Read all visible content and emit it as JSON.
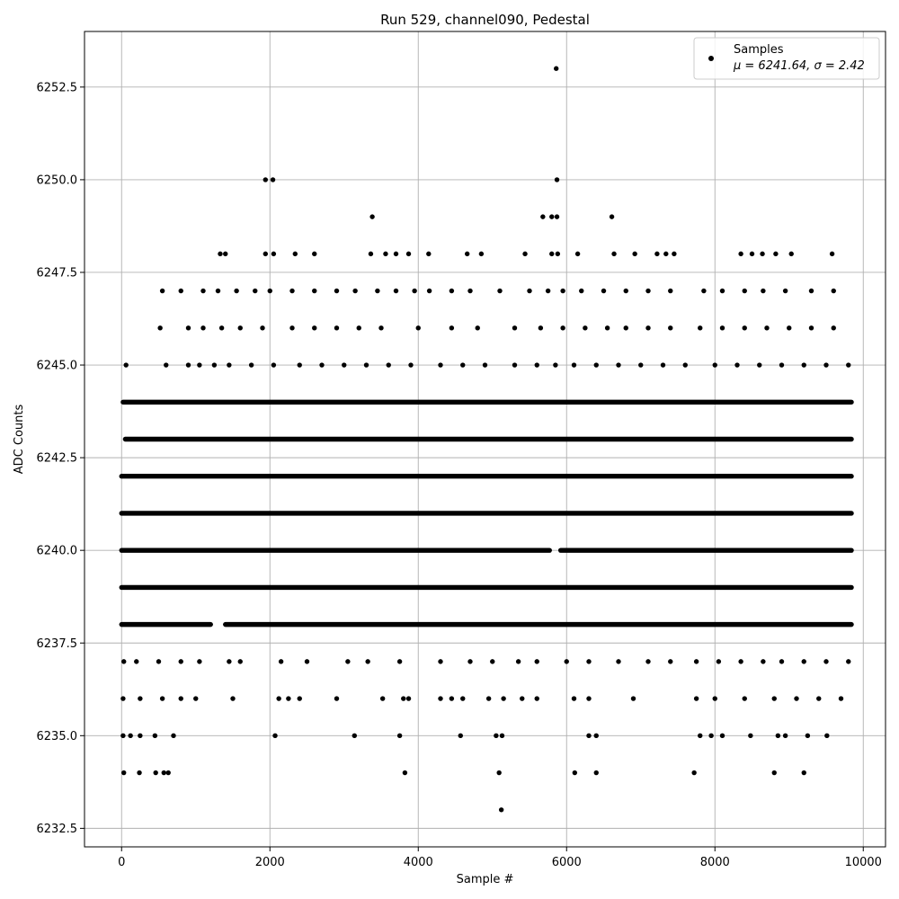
{
  "chart_data": {
    "type": "scatter",
    "title": "Run 529, channel090, Pedestal",
    "xlabel": "Sample #",
    "ylabel": "ADC Counts",
    "xlim": [
      -500,
      10300
    ],
    "ylim": [
      6232.0,
      6254.0
    ],
    "x_ticks": [
      0,
      2000,
      4000,
      6000,
      8000,
      10000
    ],
    "x_tick_labels": [
      "0",
      "2000",
      "4000",
      "6000",
      "8000",
      "10000"
    ],
    "y_ticks": [
      6232.5,
      6235.0,
      6237.5,
      6240.0,
      6242.5,
      6245.0,
      6247.5,
      6250.0,
      6252.5
    ],
    "y_tick_labels": [
      "6232.5",
      "6235.0",
      "6237.5",
      "6240.0",
      "6242.5",
      "6245.0",
      "6247.5",
      "6250.0",
      "6252.5"
    ],
    "grid": true,
    "marker_color": "#000000",
    "legend": {
      "position": "top-right",
      "entry_name": "Samples",
      "entry_stats": "μ = 6241.64, σ = 2.42"
    },
    "levels": [
      {
        "y": 6244,
        "segments": [
          [
            20,
            9840
          ]
        ]
      },
      {
        "y": 6243,
        "segments": [
          [
            50,
            9840
          ]
        ]
      },
      {
        "y": 6242,
        "segments": [
          [
            0,
            9840
          ]
        ]
      },
      {
        "y": 6241,
        "segments": [
          [
            0,
            9840
          ]
        ]
      },
      {
        "y": 6240,
        "segments": [
          [
            0,
            5770
          ],
          [
            5920,
            9840
          ]
        ]
      },
      {
        "y": 6239,
        "segments": [
          [
            0,
            9840
          ]
        ]
      },
      {
        "y": 6238,
        "segments": [
          [
            0,
            1200
          ],
          [
            1400,
            9840
          ]
        ]
      }
    ],
    "points": [
      [
        60,
        6245
      ],
      [
        600,
        6245
      ],
      [
        900,
        6245
      ],
      [
        1050,
        6245
      ],
      [
        1250,
        6245
      ],
      [
        1450,
        6245
      ],
      [
        1750,
        6245
      ],
      [
        2050,
        6245
      ],
      [
        2400,
        6245
      ],
      [
        2700,
        6245
      ],
      [
        3000,
        6245
      ],
      [
        3300,
        6245
      ],
      [
        3600,
        6245
      ],
      [
        3900,
        6245
      ],
      [
        4300,
        6245
      ],
      [
        4600,
        6245
      ],
      [
        4900,
        6245
      ],
      [
        5300,
        6245
      ],
      [
        5600,
        6245
      ],
      [
        5850,
        6245
      ],
      [
        6100,
        6245
      ],
      [
        6400,
        6245
      ],
      [
        6700,
        6245
      ],
      [
        7000,
        6245
      ],
      [
        7300,
        6245
      ],
      [
        7600,
        6245
      ],
      [
        8000,
        6245
      ],
      [
        8300,
        6245
      ],
      [
        8600,
        6245
      ],
      [
        8900,
        6245
      ],
      [
        9200,
        6245
      ],
      [
        9500,
        6245
      ],
      [
        9800,
        6245
      ],
      [
        520,
        6246
      ],
      [
        900,
        6246
      ],
      [
        1100,
        6246
      ],
      [
        1350,
        6246
      ],
      [
        1600,
        6246
      ],
      [
        1900,
        6246
      ],
      [
        2300,
        6246
      ],
      [
        2600,
        6246
      ],
      [
        2900,
        6246
      ],
      [
        3200,
        6246
      ],
      [
        3500,
        6246
      ],
      [
        4000,
        6246
      ],
      [
        4450,
        6246
      ],
      [
        4800,
        6246
      ],
      [
        5300,
        6246
      ],
      [
        5650,
        6246
      ],
      [
        5950,
        6246
      ],
      [
        6250,
        6246
      ],
      [
        6550,
        6246
      ],
      [
        6800,
        6246
      ],
      [
        7100,
        6246
      ],
      [
        7400,
        6246
      ],
      [
        7800,
        6246
      ],
      [
        8100,
        6246
      ],
      [
        8400,
        6246
      ],
      [
        8700,
        6246
      ],
      [
        9000,
        6246
      ],
      [
        9300,
        6246
      ],
      [
        9600,
        6246
      ],
      [
        550,
        6247
      ],
      [
        800,
        6247
      ],
      [
        1100,
        6247
      ],
      [
        1300,
        6247
      ],
      [
        1550,
        6247
      ],
      [
        1800,
        6247
      ],
      [
        2000,
        6247
      ],
      [
        2300,
        6247
      ],
      [
        2600,
        6247
      ],
      [
        2900,
        6247
      ],
      [
        3150,
        6247
      ],
      [
        3450,
        6247
      ],
      [
        3700,
        6247
      ],
      [
        3950,
        6247
      ],
      [
        4150,
        6247
      ],
      [
        4450,
        6247
      ],
      [
        4700,
        6247
      ],
      [
        5100,
        6247
      ],
      [
        5500,
        6247
      ],
      [
        5750,
        6247
      ],
      [
        5950,
        6247
      ],
      [
        6200,
        6247
      ],
      [
        6500,
        6247
      ],
      [
        6800,
        6247
      ],
      [
        7100,
        6247
      ],
      [
        7400,
        6247
      ],
      [
        7850,
        6247
      ],
      [
        8100,
        6247
      ],
      [
        8400,
        6247
      ],
      [
        8650,
        6247
      ],
      [
        8950,
        6247
      ],
      [
        9300,
        6247
      ],
      [
        9600,
        6247
      ],
      [
        1330,
        6248
      ],
      [
        1400,
        6248
      ],
      [
        1940,
        6248
      ],
      [
        2050,
        6248
      ],
      [
        2340,
        6248
      ],
      [
        2600,
        6248
      ],
      [
        3360,
        6248
      ],
      [
        3560,
        6248
      ],
      [
        3700,
        6248
      ],
      [
        3870,
        6248
      ],
      [
        4140,
        6248
      ],
      [
        4660,
        6248
      ],
      [
        4850,
        6248
      ],
      [
        5440,
        6248
      ],
      [
        5800,
        6248
      ],
      [
        5880,
        6248
      ],
      [
        6150,
        6248
      ],
      [
        6640,
        6248
      ],
      [
        6920,
        6248
      ],
      [
        7220,
        6248
      ],
      [
        7340,
        6248
      ],
      [
        7450,
        6248
      ],
      [
        8350,
        6248
      ],
      [
        8500,
        6248
      ],
      [
        8640,
        6248
      ],
      [
        8820,
        6248
      ],
      [
        9030,
        6248
      ],
      [
        9580,
        6248
      ],
      [
        3380,
        6249
      ],
      [
        5680,
        6249
      ],
      [
        5800,
        6249
      ],
      [
        5870,
        6249
      ],
      [
        6610,
        6249
      ],
      [
        1940,
        6250
      ],
      [
        2040,
        6250
      ],
      [
        5870,
        6250
      ],
      [
        5860,
        6253
      ],
      [
        30,
        6237
      ],
      [
        200,
        6237
      ],
      [
        500,
        6237
      ],
      [
        800,
        6237
      ],
      [
        1050,
        6237
      ],
      [
        1450,
        6237
      ],
      [
        1600,
        6237
      ],
      [
        2150,
        6237
      ],
      [
        2500,
        6237
      ],
      [
        3050,
        6237
      ],
      [
        3320,
        6237
      ],
      [
        3750,
        6237
      ],
      [
        4300,
        6237
      ],
      [
        4700,
        6237
      ],
      [
        5000,
        6237
      ],
      [
        5350,
        6237
      ],
      [
        5600,
        6237
      ],
      [
        6000,
        6237
      ],
      [
        6300,
        6237
      ],
      [
        6700,
        6237
      ],
      [
        7100,
        6237
      ],
      [
        7400,
        6237
      ],
      [
        7750,
        6237
      ],
      [
        8050,
        6237
      ],
      [
        8350,
        6237
      ],
      [
        8650,
        6237
      ],
      [
        8900,
        6237
      ],
      [
        9200,
        6237
      ],
      [
        9500,
        6237
      ],
      [
        9800,
        6237
      ],
      [
        20,
        6236
      ],
      [
        250,
        6236
      ],
      [
        550,
        6236
      ],
      [
        800,
        6236
      ],
      [
        1000,
        6236
      ],
      [
        1500,
        6236
      ],
      [
        2120,
        6236
      ],
      [
        2250,
        6236
      ],
      [
        2400,
        6236
      ],
      [
        2900,
        6236
      ],
      [
        3520,
        6236
      ],
      [
        3800,
        6236
      ],
      [
        3870,
        6236
      ],
      [
        4300,
        6236
      ],
      [
        4450,
        6236
      ],
      [
        4600,
        6236
      ],
      [
        4950,
        6236
      ],
      [
        5150,
        6236
      ],
      [
        5400,
        6236
      ],
      [
        5600,
        6236
      ],
      [
        6100,
        6236
      ],
      [
        6300,
        6236
      ],
      [
        6900,
        6236
      ],
      [
        7750,
        6236
      ],
      [
        8000,
        6236
      ],
      [
        8400,
        6236
      ],
      [
        8800,
        6236
      ],
      [
        9100,
        6236
      ],
      [
        9400,
        6236
      ],
      [
        9700,
        6236
      ],
      [
        20,
        6235
      ],
      [
        120,
        6235
      ],
      [
        250,
        6235
      ],
      [
        450,
        6235
      ],
      [
        700,
        6235
      ],
      [
        2070,
        6235
      ],
      [
        3140,
        6235
      ],
      [
        3750,
        6235
      ],
      [
        4570,
        6235
      ],
      [
        5050,
        6235
      ],
      [
        5130,
        6235
      ],
      [
        6300,
        6235
      ],
      [
        6400,
        6235
      ],
      [
        7800,
        6235
      ],
      [
        7950,
        6235
      ],
      [
        8100,
        6235
      ],
      [
        8480,
        6235
      ],
      [
        8850,
        6235
      ],
      [
        8950,
        6235
      ],
      [
        9250,
        6235
      ],
      [
        9510,
        6235
      ],
      [
        30,
        6234
      ],
      [
        240,
        6234
      ],
      [
        460,
        6234
      ],
      [
        570,
        6234
      ],
      [
        630,
        6234
      ],
      [
        3820,
        6234
      ],
      [
        5090,
        6234
      ],
      [
        6110,
        6234
      ],
      [
        6400,
        6234
      ],
      [
        7720,
        6234
      ],
      [
        8800,
        6234
      ],
      [
        9200,
        6234
      ],
      [
        5120,
        6233
      ]
    ]
  }
}
